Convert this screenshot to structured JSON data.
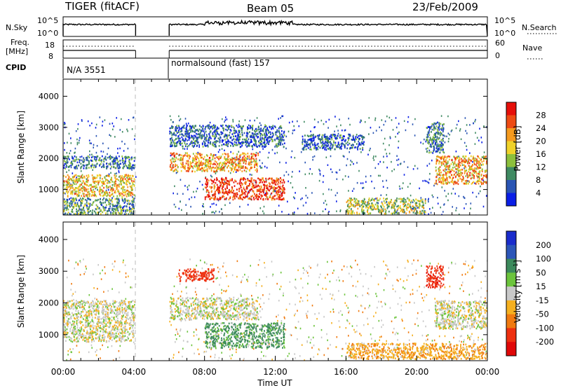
{
  "header": {
    "radar": "TIGER (fitACF)",
    "beam": "Beam 05",
    "date": "23/Feb/2009"
  },
  "panels_top": {
    "nsky_label": "N.Sky",
    "nsky_ticks": [
      "10^5",
      "10^0"
    ],
    "nsearch_label": "N.Search",
    "nsearch_ticks": [
      "10^5",
      "10^0"
    ],
    "freq_label_line1": "Freq.",
    "freq_label_line2": "[MHz]",
    "freq_ticks": [
      "18",
      "8"
    ],
    "nave_label": "Nave",
    "nave_ticks": [
      "60",
      "0"
    ],
    "cpid_label": "CPID",
    "cpid_segments": [
      {
        "text": "N/A 3551",
        "start_hour": 0.0
      },
      {
        "text": "normalsound (fast) 157",
        "start_hour": 6.0
      }
    ]
  },
  "chart_data": [
    {
      "type": "heatmap",
      "title": "",
      "xlabel": "Time UT",
      "ylabel": "Slant Range [km]",
      "x_ticks": [
        "00:00",
        "04:00",
        "08:00",
        "12:00",
        "16:00",
        "20:00",
        "00:00"
      ],
      "x_range_hours": [
        0,
        24
      ],
      "y_ticks": [
        "1000",
        "2000",
        "3000",
        "4000"
      ],
      "y_range_km": [
        180,
        4550
      ],
      "colorbar": {
        "label": "Power [dB]",
        "ticks": [
          "4",
          "8",
          "12",
          "16",
          "20",
          "24",
          "28"
        ],
        "range": [
          0,
          30
        ],
        "colors": [
          "#0a1ee6",
          "#2a55b4",
          "#3f8a62",
          "#8cbf3c",
          "#f0d22a",
          "#f59a1e",
          "#ee4b14",
          "#e60f0a"
        ]
      },
      "data_gap_hours": [
        4.1,
        6.0
      ],
      "regions": [
        {
          "t0": 0.0,
          "t1": 4.0,
          "r0": 800,
          "r1": 1500,
          "level": 18
        },
        {
          "t0": 0.0,
          "t1": 4.0,
          "r0": 1700,
          "r1": 2100,
          "level": 8
        },
        {
          "t0": 0.0,
          "t1": 4.0,
          "r0": 200,
          "r1": 750,
          "level": 10
        },
        {
          "t0": 6.0,
          "t1": 11.0,
          "r0": 1600,
          "r1": 2200,
          "level": 20
        },
        {
          "t0": 8.0,
          "t1": 12.5,
          "r0": 700,
          "r1": 1400,
          "level": 26
        },
        {
          "t0": 6.0,
          "t1": 12.5,
          "r0": 2400,
          "r1": 3100,
          "level": 6
        },
        {
          "t0": 16.0,
          "t1": 20.5,
          "r0": 250,
          "r1": 750,
          "level": 14
        },
        {
          "t0": 21.0,
          "t1": 24.0,
          "r0": 1200,
          "r1": 2100,
          "level": 20
        },
        {
          "t0": 20.5,
          "t1": 21.5,
          "r0": 2200,
          "r1": 3200,
          "level": 8
        },
        {
          "t0": 13.5,
          "t1": 17.0,
          "r0": 2300,
          "r1": 2800,
          "level": 6
        }
      ]
    },
    {
      "type": "heatmap",
      "title": "",
      "xlabel": "Time UT",
      "ylabel": "Slant Range [km]",
      "x_ticks": [
        "00:00",
        "04:00",
        "08:00",
        "12:00",
        "16:00",
        "20:00",
        "00:00"
      ],
      "x_range_hours": [
        0,
        24
      ],
      "y_ticks": [
        "1000",
        "2000",
        "3000",
        "4000"
      ],
      "y_range_km": [
        180,
        4550
      ],
      "colorbar": {
        "label": "Velocity [m s",
        "label_sup": "-1",
        "label_end": "]",
        "ticks": [
          "200",
          "100",
          "50",
          "15",
          "-15",
          "-50",
          "-100",
          "-200"
        ],
        "colors": [
          "#1a2ccc",
          "#2c56b8",
          "#3c8a5c",
          "#6cc43c",
          "#c8c8c8",
          "#f5b020",
          "#f07a10",
          "#ee3010",
          "#e00808"
        ]
      },
      "data_gap_hours": [
        4.1,
        6.0
      ],
      "regions": [
        {
          "t0": 0.0,
          "t1": 4.0,
          "r0": 800,
          "r1": 2100,
          "velocity": 0
        },
        {
          "t0": 6.0,
          "t1": 11.0,
          "r0": 1500,
          "r1": 2200,
          "velocity": 0
        },
        {
          "t0": 8.0,
          "t1": 12.5,
          "r0": 600,
          "r1": 1400,
          "velocity": 40
        },
        {
          "t0": 16.0,
          "t1": 24.0,
          "r0": 250,
          "r1": 750,
          "velocity": -40
        },
        {
          "t0": 21.0,
          "t1": 24.0,
          "r0": 1200,
          "r1": 2100,
          "velocity": 0
        },
        {
          "t0": 20.5,
          "t1": 21.5,
          "r0": 2500,
          "r1": 3200,
          "velocity": -180
        },
        {
          "t0": 6.5,
          "t1": 8.5,
          "r0": 2700,
          "r1": 3100,
          "velocity": -150
        }
      ]
    }
  ]
}
